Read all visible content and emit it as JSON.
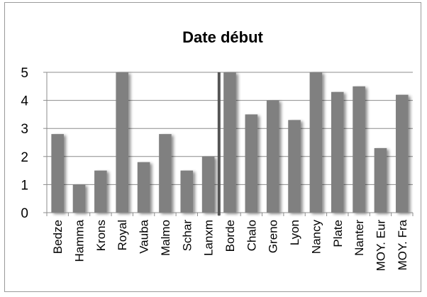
{
  "chart_data": {
    "type": "bar",
    "title": "Date début",
    "xlabel": "",
    "ylabel": "",
    "ylim": [
      0,
      5
    ],
    "yticks": [
      "0",
      "1",
      "2",
      "3",
      "4",
      "5"
    ],
    "grid": true,
    "legend": "none",
    "categories": [
      "Bedze",
      "Hamma",
      "Krons",
      "Royal",
      "Vauba",
      "Malmo",
      "Schar",
      "Lanxm",
      "Borde",
      "Chalo",
      "Greno",
      "Lyon",
      "Nancy",
      "Plate",
      "Nanter",
      "MOY. Eur",
      "MOY. Fra"
    ],
    "values": [
      2.8,
      1.0,
      1.5,
      5.0,
      1.8,
      2.8,
      1.5,
      2.0,
      5.0,
      3.5,
      4.0,
      3.3,
      5.0,
      4.3,
      4.5,
      2.3,
      4.2
    ],
    "bar_color": "#808080",
    "separator_after_category": "Lanxm"
  }
}
